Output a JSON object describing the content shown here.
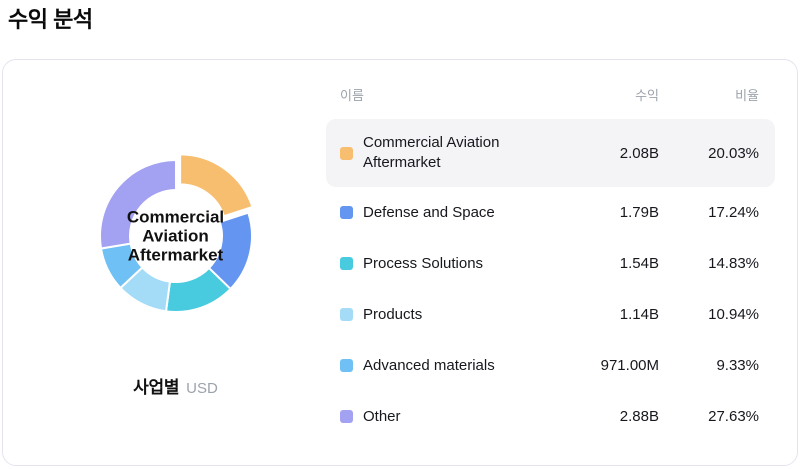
{
  "page": {
    "title": "수익 분석"
  },
  "chart": {
    "center_label": "Commercial Aviation Aftermarket",
    "caption": "사업별",
    "caption_unit": "USD"
  },
  "table": {
    "headers": {
      "name": "이름",
      "revenue": "수익",
      "ratio": "비율"
    },
    "rows": [
      {
        "name": "Commercial Aviation Aftermarket",
        "revenue": "2.08B",
        "ratio": "20.03%",
        "color": "#f8be6f",
        "selected": true
      },
      {
        "name": "Defense and Space",
        "revenue": "1.79B",
        "ratio": "17.24%",
        "color": "#6495f0",
        "selected": false
      },
      {
        "name": "Process Solutions",
        "revenue": "1.54B",
        "ratio": "14.83%",
        "color": "#49cbdf",
        "selected": false
      },
      {
        "name": "Products",
        "revenue": "1.14B",
        "ratio": "10.94%",
        "color": "#a4dcf8",
        "selected": false
      },
      {
        "name": "Advanced materials",
        "revenue": "971.00M",
        "ratio": "9.33%",
        "color": "#6fc0f4",
        "selected": false
      },
      {
        "name": "Other",
        "revenue": "2.88B",
        "ratio": "27.63%",
        "color": "#a3a1f2",
        "selected": false
      }
    ]
  },
  "chart_data": {
    "type": "pie",
    "donut": true,
    "title": "수익 분석",
    "group_by": "사업별",
    "unit": "USD",
    "start_angle_deg": 0,
    "direction": "clockwise",
    "selected_index": 0,
    "labels": [
      "Commercial Aviation Aftermarket",
      "Defense and Space",
      "Process Solutions",
      "Products",
      "Advanced materials",
      "Other"
    ],
    "values_percent": [
      20.03,
      17.24,
      14.83,
      10.94,
      9.33,
      27.63
    ],
    "revenues": [
      "2.08B",
      "1.79B",
      "1.54B",
      "1.14B",
      "971.00M",
      "2.88B"
    ],
    "colors": [
      "#f8be6f",
      "#6495f0",
      "#49cbdf",
      "#a4dcf8",
      "#6fc0f4",
      "#a3a1f2"
    ],
    "center_label": "Commercial Aviation Aftermarket"
  }
}
